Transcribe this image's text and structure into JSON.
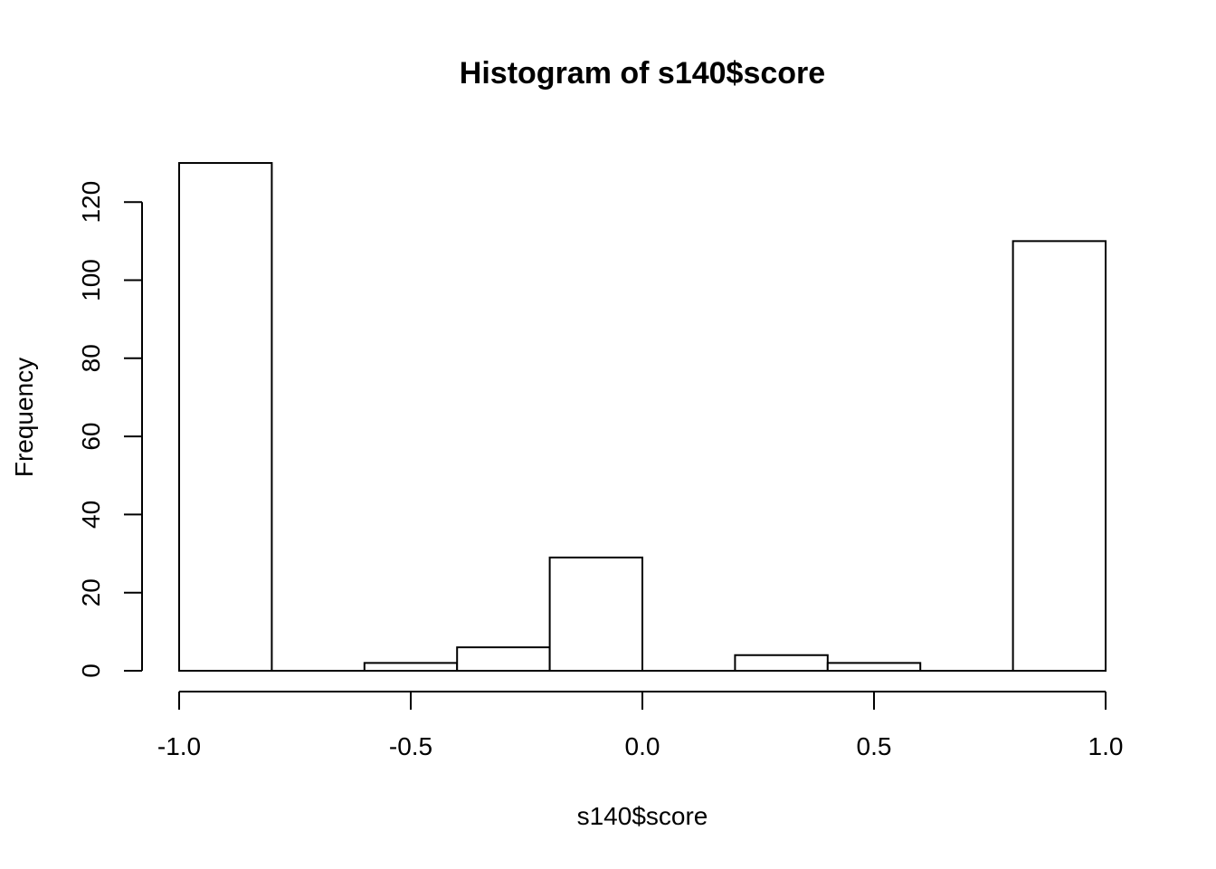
{
  "chart_data": {
    "type": "bar",
    "title": "Histogram of s140$score",
    "xlabel": "s140$score",
    "ylabel": "Frequency",
    "xlim": [
      -1.0,
      1.0
    ],
    "ylim": [
      0,
      130
    ],
    "x_ticks": [
      -1.0,
      -0.5,
      0.0,
      0.5,
      1.0
    ],
    "x_tick_labels": [
      "-1.0",
      "-0.5",
      "0.0",
      "0.5",
      "1.0"
    ],
    "y_ticks": [
      0,
      20,
      40,
      60,
      80,
      100,
      120
    ],
    "y_tick_labels": [
      "0",
      "20",
      "40",
      "60",
      "80",
      "100",
      "120"
    ],
    "bin_edges": [
      -1.0,
      -0.8,
      -0.6,
      -0.4,
      -0.2,
      0.0,
      0.2,
      0.4,
      0.6,
      0.8,
      1.0
    ],
    "values": [
      130,
      0,
      2,
      6,
      29,
      0,
      4,
      2,
      0,
      110
    ],
    "grid": false,
    "colors": {
      "bar_fill": "#ffffff",
      "bar_stroke": "#000000"
    }
  }
}
